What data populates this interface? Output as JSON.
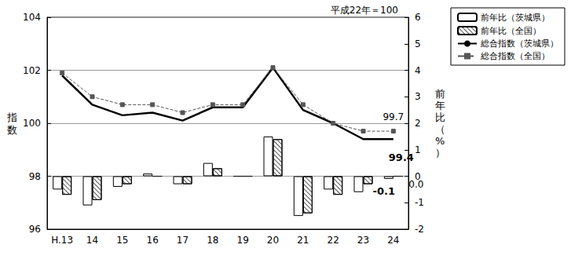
{
  "chart_data": {
    "type": "combo",
    "title": "平成22年＝100",
    "ylabel": "指数",
    "y2label": "前年比（%）",
    "categories": [
      "H.13",
      "14",
      "15",
      "16",
      "17",
      "18",
      "19",
      "20",
      "21",
      "22",
      "23",
      "24"
    ],
    "ylim": [
      96,
      104
    ],
    "yticks": [
      96,
      98,
      100,
      102,
      104
    ],
    "y2lim": [
      -2,
      6
    ],
    "y2ticks": [
      -2,
      -1,
      0,
      1,
      2,
      3,
      4,
      5,
      6
    ],
    "grid": true,
    "legend": "upper right",
    "series": [
      {
        "name": "前年比（茨城県）",
        "type": "bar",
        "axis": "y2",
        "color": "#ffffff",
        "values": [
          -0.5,
          -1.1,
          -0.4,
          0.1,
          -0.3,
          0.5,
          0.0,
          1.5,
          -1.5,
          -0.5,
          -0.6,
          -0.1
        ],
        "value_labels": [
          null,
          null,
          null,
          null,
          null,
          null,
          null,
          null,
          null,
          null,
          null,
          "-0.1"
        ]
      },
      {
        "name": "前年比（全国）",
        "type": "bar",
        "axis": "y2",
        "color": "#ffffff",
        "values": [
          -0.7,
          -0.9,
          -0.3,
          0.0,
          -0.3,
          0.3,
          0.0,
          1.4,
          -1.4,
          -0.7,
          -0.3,
          0.0
        ],
        "value_labels": [
          null,
          null,
          null,
          null,
          null,
          null,
          null,
          null,
          null,
          null,
          null,
          "0.0"
        ]
      },
      {
        "name": "総合指数（茨城県）",
        "type": "line",
        "color": "#000000",
        "marker": "none",
        "line_style": "solid",
        "values": [
          101.8,
          100.7,
          100.3,
          100.4,
          100.1,
          100.6,
          100.6,
          102.1,
          100.5,
          100.0,
          99.4,
          99.4
        ],
        "value_labels": [
          null,
          null,
          null,
          null,
          null,
          null,
          null,
          null,
          null,
          null,
          null,
          "99.4"
        ]
      },
      {
        "name": "総合指数（全国）",
        "type": "line",
        "color": "#555555",
        "marker": "square",
        "line_style": "dashed",
        "values": [
          101.9,
          101.0,
          100.7,
          100.7,
          100.4,
          100.7,
          100.7,
          102.1,
          100.7,
          100.0,
          99.7,
          99.7
        ],
        "value_labels": [
          null,
          null,
          null,
          null,
          null,
          null,
          null,
          null,
          null,
          null,
          null,
          "99.7"
        ]
      }
    ]
  }
}
